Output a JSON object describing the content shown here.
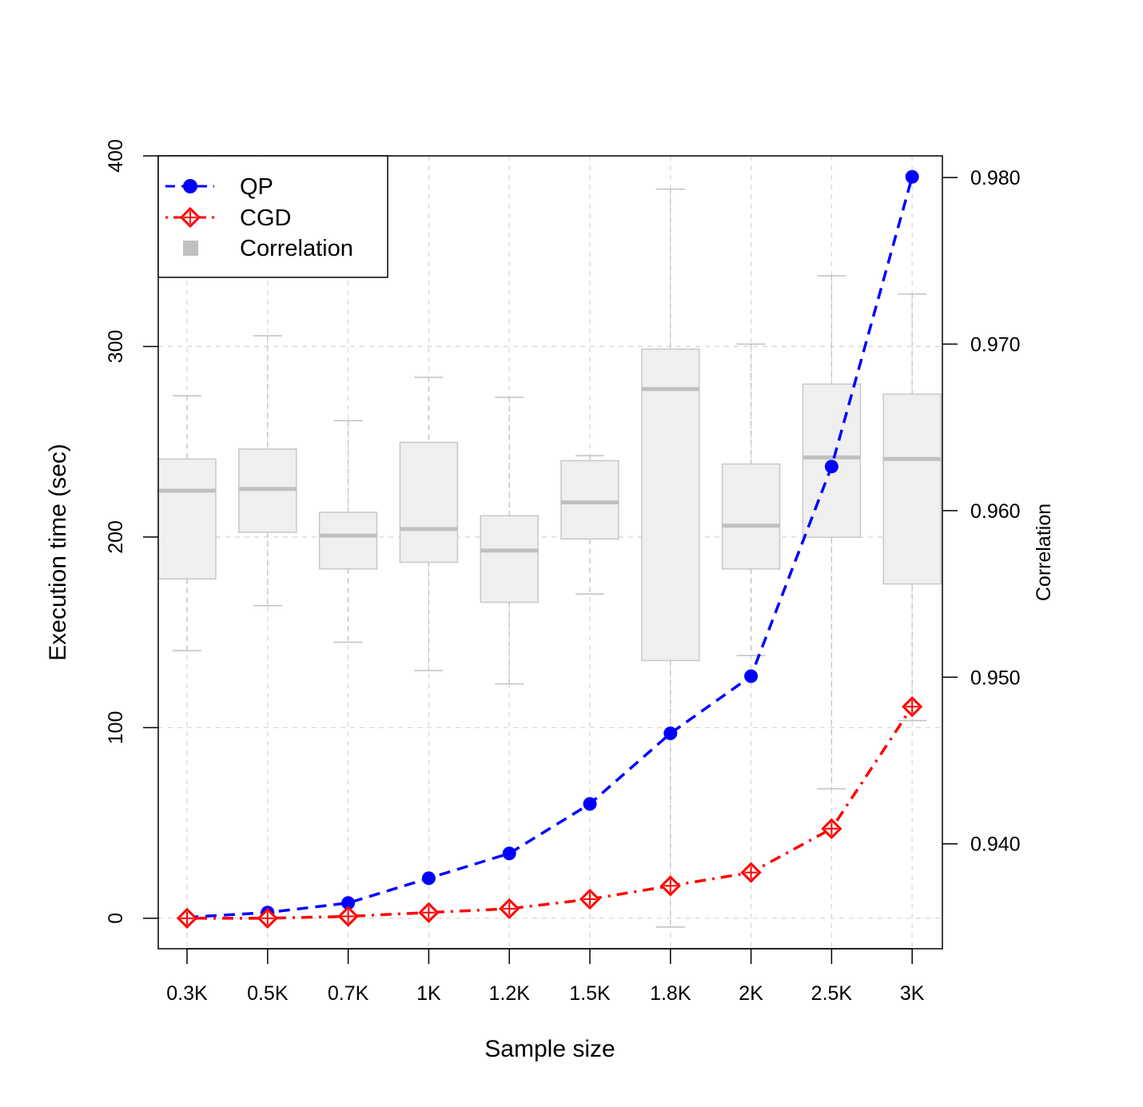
{
  "chart_data": {
    "type": "line",
    "title": "",
    "xlabel": "Sample size",
    "ylabel": "Execution time (sec)",
    "y2label": "Correlation",
    "categories": [
      "0.3K",
      "0.5K",
      "0.7K",
      "1K",
      "1.2K",
      "1.5K",
      "1.8K",
      "2K",
      "2.5K",
      "3K"
    ],
    "ylim": [
      -16,
      400
    ],
    "yticks": [
      "0",
      "100",
      "200",
      "300",
      "400"
    ],
    "y2lim": [
      0.9337,
      0.9813
    ],
    "y2ticks": [
      "0.940",
      "0.950",
      "0.960",
      "0.970",
      "0.980"
    ],
    "grid": true,
    "legend_position": "top-left",
    "legend": [
      "QP",
      "CGD",
      "Correlation"
    ],
    "series": [
      {
        "name": "QP",
        "axis": "left",
        "color": "#0000ff",
        "marker": "filled-circle",
        "line": "dashed",
        "values": [
          0.5,
          3,
          8,
          21,
          34,
          60,
          97,
          127,
          237,
          389
        ]
      },
      {
        "name": "CGD",
        "axis": "left",
        "color": "#ff0000",
        "marker": "diamond-plus",
        "line": "dot-dash",
        "values": [
          0,
          0,
          1,
          3,
          5,
          10,
          17,
          24,
          47,
          111
        ]
      }
    ],
    "boxplot": {
      "name": "Correlation",
      "axis": "right",
      "color": "#c0c0c0",
      "fill": "#efefef",
      "boxes": [
        {
          "category": "0.3K",
          "whisker_low": 0.9516,
          "q1": 0.9559,
          "median": 0.9612,
          "q3": 0.9631,
          "whisker_high": 0.9669
        },
        {
          "category": "0.5K",
          "whisker_low": 0.9543,
          "q1": 0.9587,
          "median": 0.9613,
          "q3": 0.9637,
          "whisker_high": 0.9705
        },
        {
          "category": "0.7K",
          "whisker_low": 0.9521,
          "q1": 0.9565,
          "median": 0.9585,
          "q3": 0.9599,
          "whisker_high": 0.9654
        },
        {
          "category": "1K",
          "whisker_low": 0.9504,
          "q1": 0.9569,
          "median": 0.9589,
          "q3": 0.9641,
          "whisker_high": 0.968
        },
        {
          "category": "1.2K",
          "whisker_low": 0.9496,
          "q1": 0.9545,
          "median": 0.9576,
          "q3": 0.9597,
          "whisker_high": 0.9668
        },
        {
          "category": "1.5K",
          "whisker_low": 0.955,
          "q1": 0.9583,
          "median": 0.9605,
          "q3": 0.963,
          "whisker_high": 0.9633
        },
        {
          "category": "1.8K",
          "whisker_low": 0.935,
          "q1": 0.951,
          "median": 0.9673,
          "q3": 0.9697,
          "whisker_high": 0.9793
        },
        {
          "category": "2K",
          "whisker_low": 0.9513,
          "q1": 0.9565,
          "median": 0.9591,
          "q3": 0.9628,
          "whisker_high": 0.97
        },
        {
          "category": "2.5K",
          "whisker_low": 0.9433,
          "q1": 0.9584,
          "median": 0.9632,
          "q3": 0.9676,
          "whisker_high": 0.9741
        },
        {
          "category": "3K",
          "whisker_low": 0.9474,
          "q1": 0.9556,
          "median": 0.9631,
          "q3": 0.967,
          "whisker_high": 0.973
        }
      ]
    }
  }
}
